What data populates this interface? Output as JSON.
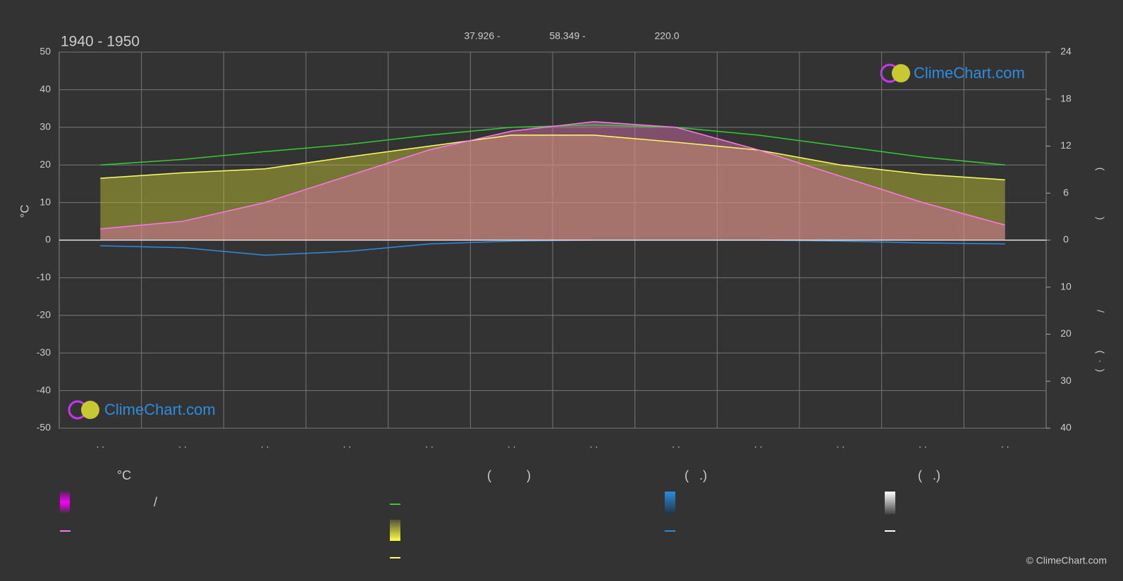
{
  "chart_data": {
    "type": "line",
    "title": "1940 - 1950",
    "stats": [
      "37.926 -",
      "58.349 -",
      "220.0"
    ],
    "ylabel": "°C",
    "y2label": [
      "(",
      ")",
      "/",
      "(",
      "·",
      ")"
    ],
    "categories": [
      ". .",
      ". .",
      ". .",
      ". .",
      ". .",
      ". .",
      ". .",
      ". .",
      ". .",
      ". .",
      ". .",
      ". ."
    ],
    "ylim": [
      -50,
      50
    ],
    "yticks": [
      -50,
      -40,
      -30,
      -20,
      -10,
      0,
      10,
      20,
      30,
      40,
      50
    ],
    "y2lim": [
      -40,
      24
    ],
    "y2ticks": [
      {
        "value": -40,
        "label": "40"
      },
      {
        "value": -30,
        "label": "30"
      },
      {
        "value": -20,
        "label": "20"
      },
      {
        "value": -10,
        "label": "10"
      },
      0,
      6,
      12,
      18,
      24
    ],
    "grid": true,
    "series": [
      {
        "color": "#c8c832",
        "axis": "y2",
        "area": true,
        "values": [
          7.9,
          8.6,
          9.1,
          10.6,
          12.0,
          13.4,
          13.4,
          12.5,
          11.5,
          9.6,
          8.4,
          7.7
        ]
      },
      {
        "color": "#e070b0",
        "area": true,
        "values": [
          3,
          5,
          10,
          17,
          24,
          29,
          31.5,
          30,
          24,
          17,
          10,
          4
        ]
      },
      {
        "color": "#33cc33",
        "axis": "y2",
        "values": [
          9.6,
          10.3,
          11.3,
          12.2,
          13.4,
          14.4,
          14.7,
          14.4,
          13.4,
          12.0,
          10.6,
          9.6
        ]
      },
      {
        "color": "#ffff66",
        "axis": "y2",
        "values": [
          7.9,
          8.6,
          9.1,
          10.6,
          12.0,
          13.4,
          13.4,
          12.5,
          11.5,
          9.6,
          8.4,
          7.7
        ]
      },
      {
        "color": "#ff77ee",
        "values": [
          3,
          5,
          10,
          17,
          24,
          29,
          31.5,
          30,
          24,
          17,
          10,
          4
        ]
      },
      {
        "color": "#2a8de0",
        "axis": "y2",
        "values": [
          -1.2,
          -1.6,
          -3.2,
          -2.4,
          -0.8,
          -0.2,
          0,
          0,
          0,
          -0.2,
          -0.6,
          -0.8
        ]
      }
    ],
    "legend": {
      "headers": [
        "°C",
        "(          )",
        "(   .)",
        "(   .)"
      ],
      "extra": "/"
    },
    "logo": "ClimeChart.com",
    "copyright": "© ClimeChart.com"
  }
}
